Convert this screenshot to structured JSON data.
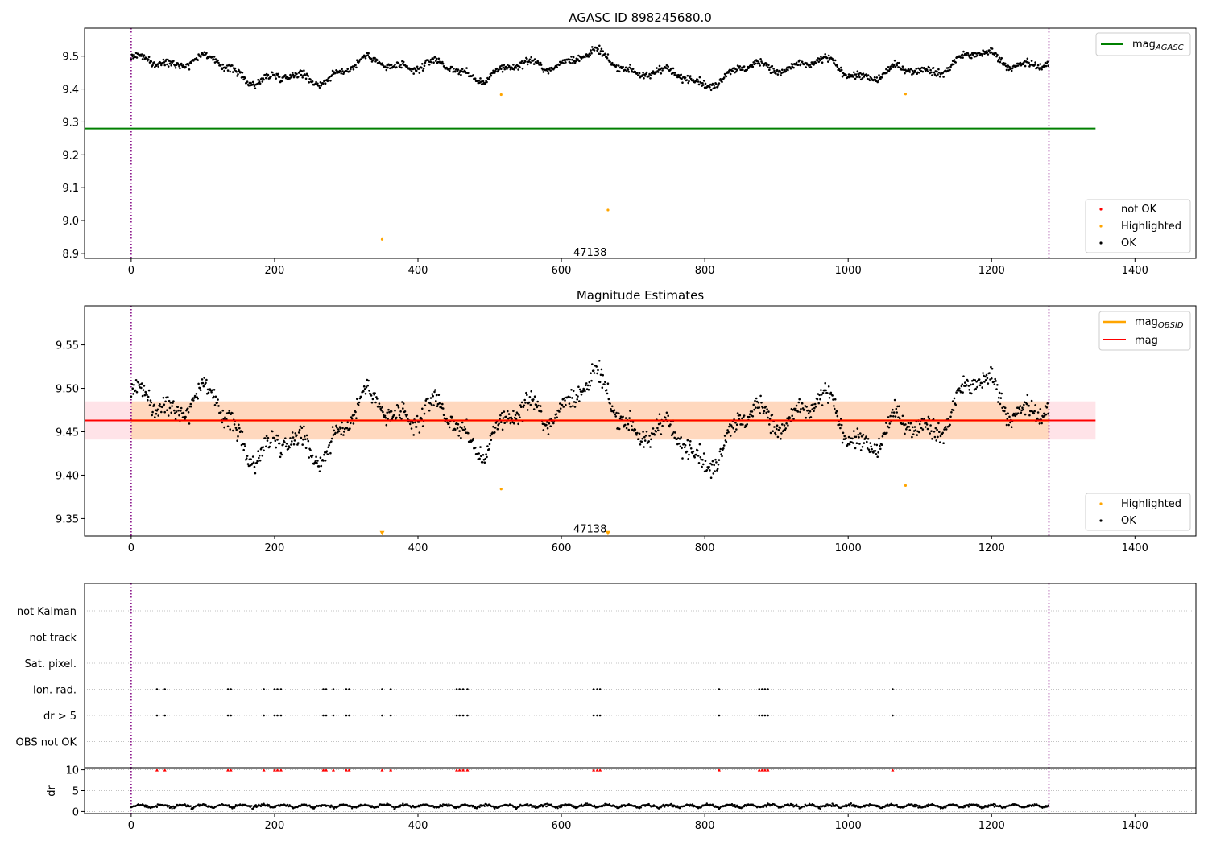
{
  "figure_title": "AGASC ID 898245680.0",
  "chart_data": [
    {
      "type": "scatter",
      "panel": "top",
      "title": "AGASC ID 898245680.0",
      "xlabel": "",
      "ylabel": "",
      "xlim": [
        -65,
        1485
      ],
      "ylim": [
        8.885,
        9.585
      ],
      "x_ticks": [
        0,
        200,
        400,
        600,
        800,
        1000,
        1200,
        1400
      ],
      "x_tick_labels": [
        "0",
        "200",
        "400",
        "600",
        "800",
        "1000",
        "1200",
        "1400"
      ],
      "y_ticks": [
        8.9,
        9.0,
        9.1,
        9.2,
        9.3,
        9.4,
        9.5
      ],
      "y_tick_labels": [
        "8.9",
        "9.0",
        "9.1",
        "9.2",
        "9.3",
        "9.4",
        "9.5"
      ],
      "vlines": [
        0,
        1280
      ],
      "hline": {
        "label": "mag",
        "subscript": "AGASC",
        "y": 9.28,
        "x_range": [
          -65,
          1345
        ],
        "color": "#008000"
      },
      "obsid_label": {
        "text": "47138",
        "x": 640,
        "y": 8.905
      },
      "series": [
        {
          "name": "OK",
          "color": "#000000",
          "n": 1280,
          "mean": 9.462,
          "x_range": [
            0,
            1280
          ]
        },
        {
          "name": "Highlighted",
          "color": "#ffa500",
          "points": [
            [
              516,
              9.383
            ],
            [
              1080,
              9.385
            ],
            [
              665,
              9.032
            ],
            [
              350,
              8.943
            ]
          ]
        },
        {
          "name": "not OK",
          "color": "#ff0000",
          "points": []
        }
      ],
      "legend_upper": [
        {
          "label": "mag",
          "subscript": "AGASC",
          "color": "#008000"
        }
      ],
      "legend_lower": [
        {
          "label": "not OK",
          "color": "#ff0000"
        },
        {
          "label": "Highlighted",
          "color": "#ffa500"
        },
        {
          "label": "OK",
          "color": "#000000"
        }
      ]
    },
    {
      "type": "scatter",
      "panel": "middle",
      "title": "Magnitude Estimates",
      "xlim": [
        -65,
        1485
      ],
      "ylim": [
        9.33,
        9.595
      ],
      "x_ticks": [
        0,
        200,
        400,
        600,
        800,
        1000,
        1200,
        1400
      ],
      "x_tick_labels": [
        "0",
        "200",
        "400",
        "600",
        "800",
        "1000",
        "1200",
        "1400"
      ],
      "y_ticks": [
        9.35,
        9.4,
        9.45,
        9.5,
        9.55
      ],
      "y_tick_labels": [
        "9.35",
        "9.40",
        "9.45",
        "9.50",
        "9.55"
      ],
      "vlines": [
        0,
        1280
      ],
      "mag_line": {
        "label": "mag",
        "y": 9.463,
        "color": "#ff0000"
      },
      "mag_band": {
        "y_low": 9.441,
        "y_high": 9.485,
        "x_range": [
          -65,
          1345
        ],
        "color": "#ffc0cb"
      },
      "obsid_band": {
        "label": "mag",
        "subscript": "OBSID",
        "y": 9.463,
        "y_low": 9.441,
        "y_high": 9.485,
        "x_range": [
          0,
          1280
        ],
        "color": "#ffa500"
      },
      "obsid_label": {
        "text": "47138",
        "x": 640,
        "y": 9.339
      },
      "series": [
        {
          "name": "OK",
          "color": "#000000",
          "n": 1280,
          "mean": 9.462,
          "x_range": [
            0,
            1280
          ]
        },
        {
          "name": "Highlighted",
          "color": "#ffa500",
          "points": [
            [
              516,
              9.384
            ],
            [
              1080,
              9.388
            ]
          ]
        },
        {
          "name": "Highlighted (out of range)",
          "color": "#ffa500",
          "marker": "down-triangle",
          "points": [
            [
              350,
              9.333
            ],
            [
              665,
              9.333
            ]
          ]
        }
      ],
      "legend_upper": [
        {
          "label": "mag",
          "subscript": "OBSID",
          "color": "#ffa500"
        },
        {
          "label": "mag",
          "subscript": "",
          "color": "#ff0000"
        }
      ],
      "legend_lower": [
        {
          "label": "Highlighted",
          "color": "#ffa500"
        },
        {
          "label": "OK",
          "color": "#000000"
        }
      ]
    },
    {
      "type": "scatter",
      "panel": "flags",
      "xlim": [
        -65,
        1485
      ],
      "vlines": [
        0,
        1280
      ],
      "categories": [
        "not Kalman",
        "not track",
        "Sat. pixel.",
        "Ion. rad.",
        "dr > 5",
        "OBS not OK"
      ],
      "flag_x": [
        36,
        47,
        135,
        139,
        185,
        200,
        204,
        209,
        268,
        272,
        282,
        300,
        304,
        350,
        362,
        454,
        458,
        463,
        469,
        645,
        650,
        654,
        820,
        876,
        880,
        884,
        888,
        1062
      ],
      "flag_rows": [
        "Ion. rad.",
        "dr > 5"
      ]
    },
    {
      "type": "line",
      "panel": "dr",
      "ylabel": "dr",
      "xlim": [
        -65,
        1485
      ],
      "ylim": [
        -0.5,
        10.5
      ],
      "x_ticks": [
        0,
        200,
        400,
        600,
        800,
        1000,
        1200,
        1400
      ],
      "x_tick_labels": [
        "0",
        "200",
        "400",
        "600",
        "800",
        "1000",
        "1200",
        "1400"
      ],
      "y_ticks": [
        0,
        5,
        10
      ],
      "y_tick_labels": [
        "0",
        "5",
        "10"
      ],
      "vlines": [
        0,
        1280
      ],
      "clip_value": 10,
      "clipped_marker_color": "#ff0000",
      "series": [
        {
          "name": "dr",
          "color": "#000000",
          "n": 1280,
          "typical_range": [
            0,
            2.5
          ]
        }
      ]
    }
  ]
}
